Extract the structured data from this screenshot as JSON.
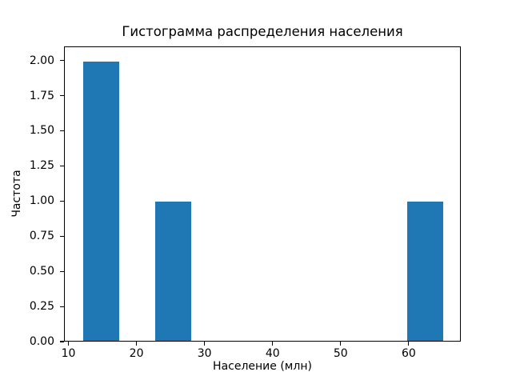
{
  "chart_data": {
    "type": "bar",
    "title": "Гистограмма распределения населения",
    "xlabel": "Население (млн)",
    "ylabel": "Частота",
    "bar_color": "#1f77b4",
    "background_color": "#ffffff",
    "axis_color": "#000000",
    "grid": false,
    "legend": false,
    "xlim": [
      9.35,
      67.65
    ],
    "ylim": [
      0,
      2.1
    ],
    "x_ticks": [
      "10",
      "20",
      "30",
      "40",
      "50",
      "60"
    ],
    "y_ticks": [
      "0.00",
      "0.25",
      "0.50",
      "0.75",
      "1.00",
      "1.25",
      "1.50",
      "1.75",
      "2.00"
    ],
    "bars": [
      {
        "x_start": 12.0,
        "x_end": 17.3,
        "height": 2
      },
      {
        "x_start": 22.6,
        "x_end": 27.9,
        "height": 1
      },
      {
        "x_start": 59.7,
        "x_end": 65.0,
        "height": 1
      }
    ]
  }
}
